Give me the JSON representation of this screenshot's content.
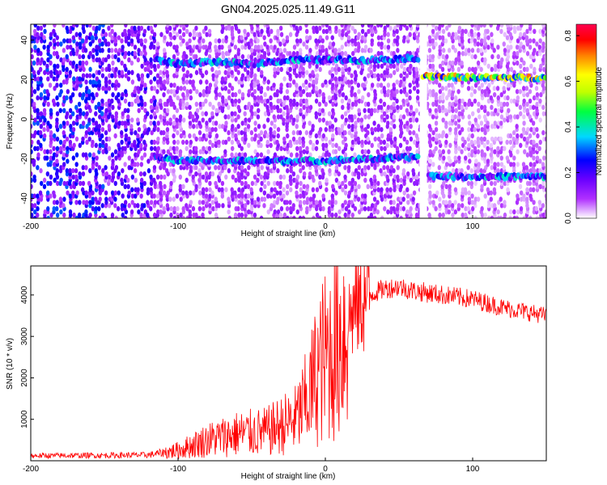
{
  "title": "GN04.2025.025.11.49.G11",
  "colors": {
    "snr_line": "#ff0000",
    "spectrogram_background": "#ffffff",
    "colormap": [
      "#ffffff",
      "#b030ff",
      "#6a00ff",
      "#0000ff",
      "#00d8ff",
      "#00ff40",
      "#c0ff00",
      "#ffff00",
      "#ff7f00",
      "#ff0000",
      "#ff0050"
    ]
  },
  "chart_data": [
    {
      "type": "heatmap",
      "xlabel": "Height of straight line (km)",
      "ylabel": "Frequency (Hz)",
      "xlim": [
        -200,
        150
      ],
      "ylim": [
        -50,
        48
      ],
      "x_ticks": [
        -200,
        -100,
        0,
        100
      ],
      "y_ticks": [
        -40,
        -20,
        0,
        20,
        40
      ],
      "colorbar": {
        "label": "Normalized spectral amplitude",
        "range": [
          0,
          0.85
        ],
        "ticks": [
          0,
          0.2,
          0.4,
          0.6,
          0.8
        ],
        "tick_labels": [
          "0.0",
          "0.2",
          "0.4",
          "0.6",
          "0.8"
        ]
      },
      "tracks": [
        {
          "points": [
            [
              -115,
              30
            ],
            [
              -100,
              28
            ],
            [
              -80,
              29
            ],
            [
              -50,
              28
            ],
            [
              -20,
              30
            ],
            [
              0,
              30
            ],
            [
              30,
              30
            ],
            [
              64,
              31
            ]
          ],
          "amplitude": 0.3
        },
        {
          "points": [
            [
              -115,
              -19
            ],
            [
              -100,
              -21
            ],
            [
              -80,
              -21
            ],
            [
              -60,
              -21
            ],
            [
              -30,
              -21
            ],
            [
              0,
              -21
            ],
            [
              30,
              -20
            ],
            [
              64,
              -19
            ]
          ],
          "amplitude": 0.3
        },
        {
          "points": [
            [
              66,
              22
            ],
            [
              80,
              21.5
            ],
            [
              100,
              21
            ],
            [
              120,
              21
            ],
            [
              150,
              21
            ]
          ],
          "amplitude": 0.55
        },
        {
          "points": [
            [
              70,
              -28.5
            ],
            [
              90,
              -29
            ],
            [
              120,
              -29
            ],
            [
              150,
              -29
            ]
          ],
          "amplitude": 0.3
        }
      ],
      "data_gap_x": [
        64,
        69
      ]
    },
    {
      "type": "line",
      "xlabel": "Height of straight line (km)",
      "ylabel": "SNR (10 * v/v)",
      "xlim": [
        -200,
        150
      ],
      "ylim": [
        0,
        4700
      ],
      "x_ticks": [
        -200,
        -100,
        0,
        100
      ],
      "y_ticks": [
        1000,
        2000,
        3000,
        4000
      ],
      "series": [
        {
          "x": [
            -200,
            -150,
            -120,
            -100,
            -80,
            -60,
            -40,
            -20,
            -12,
            -5,
            0,
            10,
            20,
            30,
            40,
            50,
            60,
            80,
            100,
            120,
            150
          ],
          "values": [
            120,
            130,
            140,
            250,
            500,
            650,
            700,
            1000,
            1500,
            2200,
            2500,
            3000,
            3700,
            4000,
            4150,
            4200,
            4100,
            4000,
            3900,
            3700,
            3500
          ]
        }
      ]
    }
  ]
}
